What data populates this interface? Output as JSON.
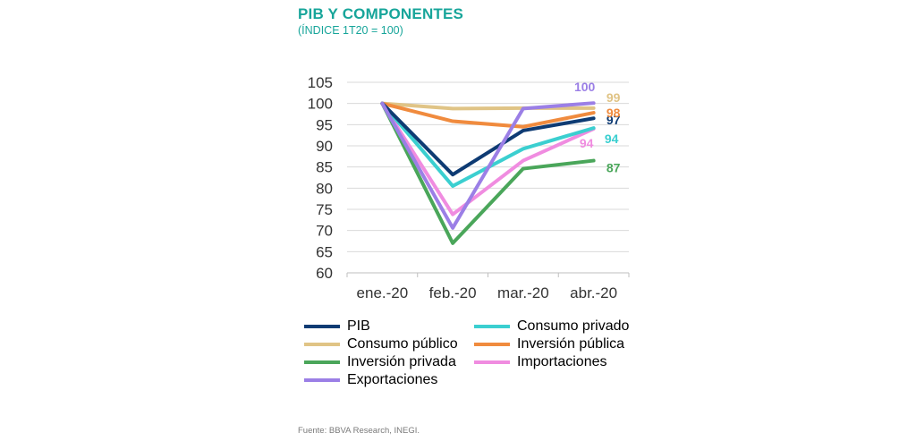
{
  "header": {
    "title": "PIB Y COMPONENTES",
    "subtitle": "(ÍNDICE 1T20 = 100)"
  },
  "footer": {
    "source": "Fuente: BBVA Research, INEGI."
  },
  "chart_data": {
    "type": "line",
    "title": "PIB Y COMPONENTES",
    "subtitle": "(ÍNDICE 1T20 = 100)",
    "categories": [
      "ene.-20",
      "feb.-20",
      "mar.-20",
      "abr.-20"
    ],
    "ylim": [
      60,
      105
    ],
    "yticks": [
      "60",
      "65",
      "70",
      "75",
      "80",
      "85",
      "90",
      "95",
      "100",
      "105"
    ],
    "grid": true,
    "legend_position": "bottom",
    "series": [
      {
        "name": "PIB",
        "color": "#0e3b73",
        "values": [
          100,
          83.2,
          93.6,
          96.5
        ],
        "end_label": "97"
      },
      {
        "name": "Consumo privado",
        "color": "#3bcfd0",
        "values": [
          100,
          80.5,
          89.3,
          94.2
        ],
        "end_label": "94"
      },
      {
        "name": "Consumo público",
        "color": "#e0c486",
        "values": [
          100,
          98.8,
          98.9,
          98.9
        ],
        "end_label": "99"
      },
      {
        "name": "Inversión pública",
        "color": "#f08b3e",
        "values": [
          100,
          95.8,
          94.5,
          97.8
        ],
        "end_label": "98"
      },
      {
        "name": "Inversión privada",
        "color": "#4aa65a",
        "values": [
          100,
          67.0,
          84.6,
          86.5
        ],
        "end_label": "87"
      },
      {
        "name": "Importaciones",
        "color": "#f08ce0",
        "values": [
          100,
          73.8,
          86.5,
          94.0
        ],
        "end_label": "94"
      },
      {
        "name": "Exportaciones",
        "color": "#9b7fe6",
        "values": [
          100,
          70.6,
          98.8,
          100.1
        ],
        "end_label": "100"
      }
    ]
  }
}
